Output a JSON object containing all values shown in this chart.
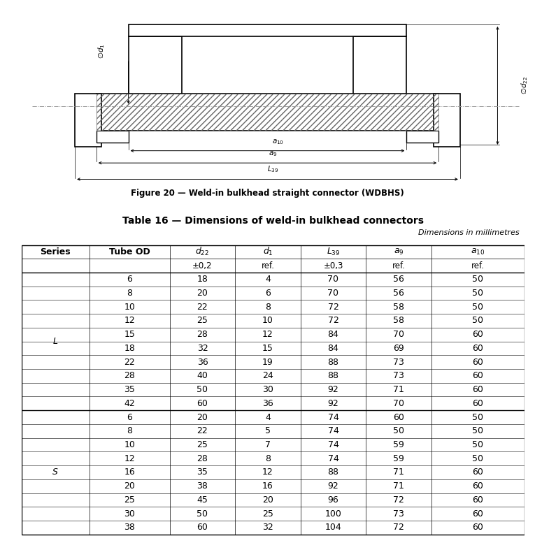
{
  "figure_title": "Figure 20 — Weld-in bulkhead straight connector (WDBHS)",
  "table_title": "Table 16 — Dimensions of weld-in bulkhead connectors",
  "table_subtitle": "Dimensions in millimetres",
  "series_L_data": [
    [
      6,
      18,
      4,
      70,
      56,
      50
    ],
    [
      8,
      20,
      6,
      70,
      56,
      50
    ],
    [
      10,
      22,
      8,
      72,
      58,
      50
    ],
    [
      12,
      25,
      10,
      72,
      58,
      50
    ],
    [
      15,
      28,
      12,
      84,
      70,
      60
    ],
    [
      18,
      32,
      15,
      84,
      69,
      60
    ],
    [
      22,
      36,
      19,
      88,
      73,
      60
    ],
    [
      28,
      40,
      24,
      88,
      73,
      60
    ],
    [
      35,
      50,
      30,
      92,
      71,
      60
    ],
    [
      42,
      60,
      36,
      92,
      70,
      60
    ]
  ],
  "series_S_data": [
    [
      6,
      20,
      4,
      74,
      60,
      50
    ],
    [
      8,
      22,
      5,
      74,
      50,
      50
    ],
    [
      10,
      25,
      7,
      74,
      59,
      50
    ],
    [
      12,
      28,
      8,
      74,
      59,
      50
    ],
    [
      16,
      35,
      12,
      88,
      71,
      60
    ],
    [
      20,
      38,
      16,
      92,
      71,
      60
    ],
    [
      25,
      45,
      20,
      96,
      72,
      60
    ],
    [
      30,
      50,
      25,
      100,
      73,
      60
    ],
    [
      38,
      60,
      32,
      104,
      72,
      60
    ]
  ],
  "bg_color": "#ffffff",
  "line_color": "#000000"
}
